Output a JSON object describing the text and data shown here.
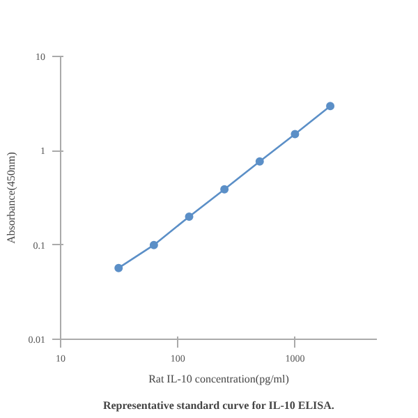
{
  "chart_data": {
    "type": "line",
    "xlabel": "Rat IL-10 concentration(pg/ml)",
    "ylabel": "Absorbance(450nm)",
    "annotations": [
      "Representative standard curve for IL-10 ELISA."
    ],
    "x": [
      31.25,
      62.5,
      125,
      250,
      500,
      1000,
      2000
    ],
    "series": [
      {
        "color": "#5b8fc7",
        "values": [
          0.057,
          0.1,
          0.2,
          0.39,
          0.77,
          1.5,
          2.97
        ]
      }
    ],
    "log": "xy",
    "xlim": [
      10,
      5000
    ],
    "ylim": [
      0.01,
      10
    ],
    "xticks": [
      10,
      100,
      1000
    ],
    "yticks": [
      0.01,
      0.1,
      1,
      10
    ],
    "grid": false,
    "marker": "circle",
    "line_style": "solid"
  }
}
